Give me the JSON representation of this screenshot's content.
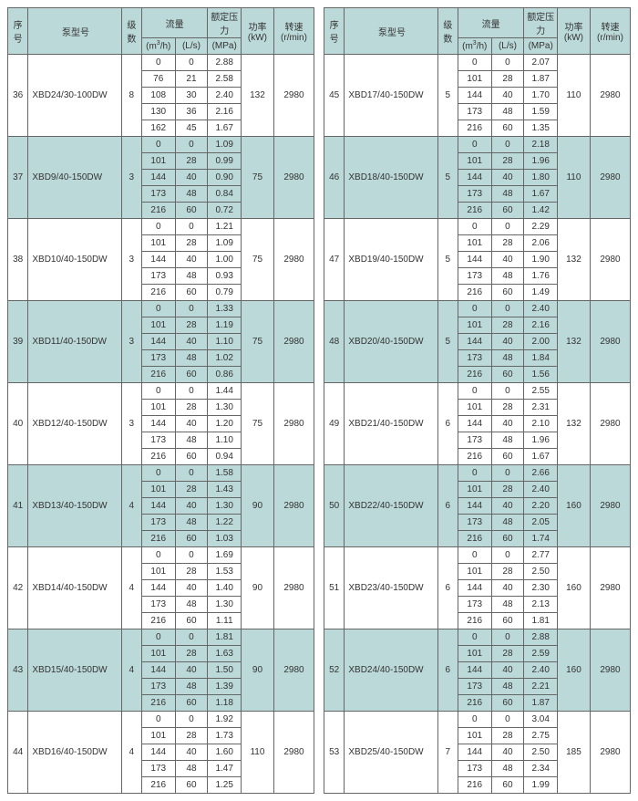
{
  "headers": {
    "seq": "序号",
    "model": "泵型号",
    "stages": "级数",
    "flow": "流量",
    "m3h": "(m³/h)",
    "ls": "(L/s)",
    "pressure_top": "额定压力",
    "pressure_unit": "(MPa)",
    "power": "功率(kW)",
    "speed": "转速(r/min)"
  },
  "left": [
    {
      "seq": 36,
      "model": "XBD24/30-100DW",
      "stages": 8,
      "kw": 132,
      "rpm": 2980,
      "rows": [
        [
          0,
          0,
          "2.88"
        ],
        [
          76,
          21,
          "2.58"
        ],
        [
          108,
          30,
          "2.40"
        ],
        [
          130,
          36,
          "2.16"
        ],
        [
          162,
          45,
          "1.67"
        ]
      ],
      "shade": false
    },
    {
      "seq": 37,
      "model": "XBD9/40-150DW",
      "stages": 3,
      "kw": 75,
      "rpm": 2980,
      "rows": [
        [
          0,
          0,
          "1.09"
        ],
        [
          101,
          28,
          "0.99"
        ],
        [
          144,
          40,
          "0.90"
        ],
        [
          173,
          48,
          "0.84"
        ],
        [
          216,
          60,
          "0.72"
        ]
      ],
      "shade": true
    },
    {
      "seq": 38,
      "model": "XBD10/40-150DW",
      "stages": 3,
      "kw": 75,
      "rpm": 2980,
      "rows": [
        [
          0,
          0,
          "1.21"
        ],
        [
          101,
          28,
          "1.09"
        ],
        [
          144,
          40,
          "1.00"
        ],
        [
          173,
          48,
          "0.93"
        ],
        [
          216,
          60,
          "0.79"
        ]
      ],
      "shade": false
    },
    {
      "seq": 39,
      "model": "XBD11/40-150DW",
      "stages": 3,
      "kw": 75,
      "rpm": 2980,
      "rows": [
        [
          0,
          0,
          "1.33"
        ],
        [
          101,
          28,
          "1.19"
        ],
        [
          144,
          40,
          "1.10"
        ],
        [
          173,
          48,
          "1.02"
        ],
        [
          216,
          60,
          "0.86"
        ]
      ],
      "shade": true
    },
    {
      "seq": 40,
      "model": "XBD12/40-150DW",
      "stages": 3,
      "kw": 75,
      "rpm": 2980,
      "rows": [
        [
          0,
          0,
          "1.44"
        ],
        [
          101,
          28,
          "1.30"
        ],
        [
          144,
          40,
          "1.20"
        ],
        [
          173,
          48,
          "1.10"
        ],
        [
          216,
          60,
          "0.94"
        ]
      ],
      "shade": false
    },
    {
      "seq": 41,
      "model": "XBD13/40-150DW",
      "stages": 4,
      "kw": 90,
      "rpm": 2980,
      "rows": [
        [
          0,
          0,
          "1.58"
        ],
        [
          101,
          28,
          "1.43"
        ],
        [
          144,
          40,
          "1.30"
        ],
        [
          173,
          48,
          "1.22"
        ],
        [
          216,
          60,
          "1.03"
        ]
      ],
      "shade": true
    },
    {
      "seq": 42,
      "model": "XBD14/40-150DW",
      "stages": 4,
      "kw": 90,
      "rpm": 2980,
      "rows": [
        [
          0,
          0,
          "1.69"
        ],
        [
          101,
          28,
          "1.53"
        ],
        [
          144,
          40,
          "1.40"
        ],
        [
          173,
          48,
          "1.30"
        ],
        [
          216,
          60,
          "1.11"
        ]
      ],
      "shade": false
    },
    {
      "seq": 43,
      "model": "XBD15/40-150DW",
      "stages": 4,
      "kw": 90,
      "rpm": 2980,
      "rows": [
        [
          0,
          0,
          "1.81"
        ],
        [
          101,
          28,
          "1.63"
        ],
        [
          144,
          40,
          "1.50"
        ],
        [
          173,
          48,
          "1.39"
        ],
        [
          216,
          60,
          "1.18"
        ]
      ],
      "shade": true
    },
    {
      "seq": 44,
      "model": "XBD16/40-150DW",
      "stages": 4,
      "kw": 110,
      "rpm": 2980,
      "rows": [
        [
          0,
          0,
          "1.92"
        ],
        [
          101,
          28,
          "1.73"
        ],
        [
          144,
          40,
          "1.60"
        ],
        [
          173,
          48,
          "1.47"
        ],
        [
          216,
          60,
          "1.25"
        ]
      ],
      "shade": false
    }
  ],
  "right": [
    {
      "seq": 45,
      "model": "XBD17/40-150DW",
      "stages": 5,
      "kw": 110,
      "rpm": 2980,
      "rows": [
        [
          0,
          0,
          "2.07"
        ],
        [
          101,
          28,
          "1.87"
        ],
        [
          144,
          40,
          "1.70"
        ],
        [
          173,
          48,
          "1.59"
        ],
        [
          216,
          60,
          "1.35"
        ]
      ],
      "shade": false
    },
    {
      "seq": 46,
      "model": "XBD18/40-150DW",
      "stages": 5,
      "kw": 110,
      "rpm": 2980,
      "rows": [
        [
          0,
          0,
          "2.18"
        ],
        [
          101,
          28,
          "1.96"
        ],
        [
          144,
          40,
          "1.80"
        ],
        [
          173,
          48,
          "1.67"
        ],
        [
          216,
          60,
          "1.42"
        ]
      ],
      "shade": true
    },
    {
      "seq": 47,
      "model": "XBD19/40-150DW",
      "stages": 5,
      "kw": 132,
      "rpm": 2980,
      "rows": [
        [
          0,
          0,
          "2.29"
        ],
        [
          101,
          28,
          "2.06"
        ],
        [
          144,
          40,
          "1.90"
        ],
        [
          173,
          48,
          "1.76"
        ],
        [
          216,
          60,
          "1.49"
        ]
      ],
      "shade": false
    },
    {
      "seq": 48,
      "model": "XBD20/40-150DW",
      "stages": 5,
      "kw": 132,
      "rpm": 2980,
      "rows": [
        [
          0,
          0,
          "2.40"
        ],
        [
          101,
          28,
          "2.16"
        ],
        [
          144,
          40,
          "2.00"
        ],
        [
          173,
          48,
          "1.84"
        ],
        [
          216,
          60,
          "1.56"
        ]
      ],
      "shade": true
    },
    {
      "seq": 49,
      "model": "XBD21/40-150DW",
      "stages": 6,
      "kw": 132,
      "rpm": 2980,
      "rows": [
        [
          0,
          0,
          "2.55"
        ],
        [
          101,
          28,
          "2.31"
        ],
        [
          144,
          40,
          "2.10"
        ],
        [
          173,
          48,
          "1.96"
        ],
        [
          216,
          60,
          "1.67"
        ]
      ],
      "shade": false
    },
    {
      "seq": 50,
      "model": "XBD22/40-150DW",
      "stages": 6,
      "kw": 160,
      "rpm": 2980,
      "rows": [
        [
          0,
          0,
          "2.66"
        ],
        [
          101,
          28,
          "2.40"
        ],
        [
          144,
          40,
          "2.20"
        ],
        [
          173,
          48,
          "2.05"
        ],
        [
          216,
          60,
          "1.74"
        ]
      ],
      "shade": true
    },
    {
      "seq": 51,
      "model": "XBD23/40-150DW",
      "stages": 6,
      "kw": 160,
      "rpm": 2980,
      "rows": [
        [
          0,
          0,
          "2.77"
        ],
        [
          101,
          28,
          "2.50"
        ],
        [
          144,
          40,
          "2.30"
        ],
        [
          173,
          48,
          "2.13"
        ],
        [
          216,
          60,
          "1.81"
        ]
      ],
      "shade": false
    },
    {
      "seq": 52,
      "model": "XBD24/40-150DW",
      "stages": 6,
      "kw": 160,
      "rpm": 2980,
      "rows": [
        [
          0,
          0,
          "2.88"
        ],
        [
          101,
          28,
          "2.59"
        ],
        [
          144,
          40,
          "2.40"
        ],
        [
          173,
          48,
          "2.21"
        ],
        [
          216,
          60,
          "1.87"
        ]
      ],
      "shade": true
    },
    {
      "seq": 53,
      "model": "XBD25/40-150DW",
      "stages": 7,
      "kw": 185,
      "rpm": 2980,
      "rows": [
        [
          0,
          0,
          "3.04"
        ],
        [
          101,
          28,
          "2.75"
        ],
        [
          144,
          40,
          "2.50"
        ],
        [
          173,
          48,
          "2.34"
        ],
        [
          216,
          60,
          "1.99"
        ]
      ],
      "shade": false
    }
  ]
}
